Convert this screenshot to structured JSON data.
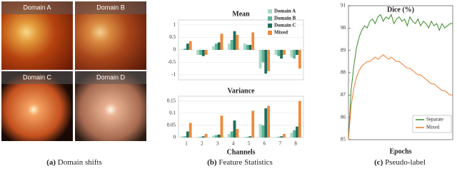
{
  "figure": {
    "panels": [
      {
        "label": "(a)",
        "caption": "Domain shifts",
        "images": [
          "Domain A",
          "Domain B",
          "Domain C",
          "Domain D"
        ]
      },
      {
        "label": "(b)",
        "caption": "Feature Statistics"
      },
      {
        "label": "(c)",
        "caption": "Pseudo-label"
      }
    ]
  },
  "chart_data": [
    {
      "type": "bar",
      "title": "Mean",
      "ylim": [
        -1.2,
        1.2
      ],
      "yticks": [
        -1,
        -0.5,
        0,
        0.5,
        1
      ],
      "grid": true,
      "legend": "upper right",
      "series": [
        {
          "name": "Domain A",
          "color": "#a9d9c6",
          "values": [
            0.02,
            -0.2,
            0.15,
            0.25,
            0.25,
            -0.75,
            -0.2,
            -0.3
          ]
        },
        {
          "name": "Domain B",
          "color": "#5fb39a",
          "values": [
            0.05,
            -0.2,
            0.25,
            0.4,
            0.2,
            -0.5,
            -0.25,
            -0.35
          ]
        },
        {
          "name": "Domain C",
          "color": "#1f6e5a",
          "values": [
            0.25,
            -0.25,
            0.3,
            0.75,
            0.2,
            -0.95,
            -0.35,
            -0.2
          ]
        },
        {
          "name": "Mixed",
          "color": "#f08a3c",
          "values": [
            0.35,
            -0.2,
            0.65,
            0.6,
            0.7,
            -0.85,
            -0.2,
            -0.75
          ]
        }
      ]
    },
    {
      "type": "bar",
      "title": "Variance",
      "x_label": "Channels",
      "categories": [
        "1",
        "2",
        "3",
        "4",
        "5",
        "6",
        "7",
        "8"
      ],
      "ylim": [
        0,
        0.17
      ],
      "yticks": [
        0,
        0.05,
        0.1,
        0.15
      ],
      "grid": true,
      "series": [
        {
          "color": "#a9d9c6",
          "values": [
            0.005,
            0.002,
            0.008,
            0.015,
            0.002,
            0.055,
            0.002,
            0.02
          ]
        },
        {
          "color": "#5fb39a",
          "values": [
            0.005,
            0.003,
            0.01,
            0.025,
            0.003,
            0.05,
            0.003,
            0.03
          ]
        },
        {
          "color": "#1f6e5a",
          "values": [
            0.025,
            0.005,
            0.012,
            0.07,
            0.005,
            0.12,
            0.005,
            0.045
          ]
        },
        {
          "color": "#f08a3c",
          "values": [
            0.06,
            0.015,
            0.09,
            0.035,
            0.11,
            0.13,
            0.015,
            0.15
          ]
        }
      ]
    },
    {
      "type": "line",
      "title": "Dice (%)",
      "x_label": "Epochs",
      "ylim": [
        85,
        91
      ],
      "yticks": [
        85,
        86,
        87,
        88,
        89,
        90,
        91
      ],
      "grid": false,
      "legend": "lower right",
      "series": [
        {
          "name": "Separate",
          "color": "#3a8a2a",
          "values": [
            85.0,
            87.2,
            88.3,
            89.1,
            89.6,
            89.9,
            90.1,
            90.0,
            90.3,
            90.4,
            90.2,
            90.5,
            90.6,
            90.3,
            90.5,
            90.4,
            90.6,
            90.2,
            90.4,
            90.5,
            90.3,
            90.4,
            90.1,
            90.5,
            90.3,
            90.2,
            90.4,
            90.1,
            90.3,
            90.2,
            90.0,
            90.3,
            90.1,
            90.2,
            89.9,
            90.2,
            90.0,
            90.1,
            90.2,
            90.2
          ]
        },
        {
          "name": "Mixed",
          "color": "#f07a30",
          "values": [
            85.0,
            86.5,
            87.3,
            87.8,
            88.1,
            88.3,
            88.4,
            88.5,
            88.5,
            88.6,
            88.7,
            88.6,
            88.7,
            88.8,
            88.7,
            88.6,
            88.7,
            88.6,
            88.5,
            88.5,
            88.4,
            88.3,
            88.2,
            88.2,
            88.1,
            88.0,
            87.9,
            87.9,
            87.8,
            87.7,
            87.6,
            87.5,
            87.5,
            87.4,
            87.3,
            87.2,
            87.2,
            87.1,
            87.0,
            87.0
          ]
        }
      ]
    }
  ]
}
